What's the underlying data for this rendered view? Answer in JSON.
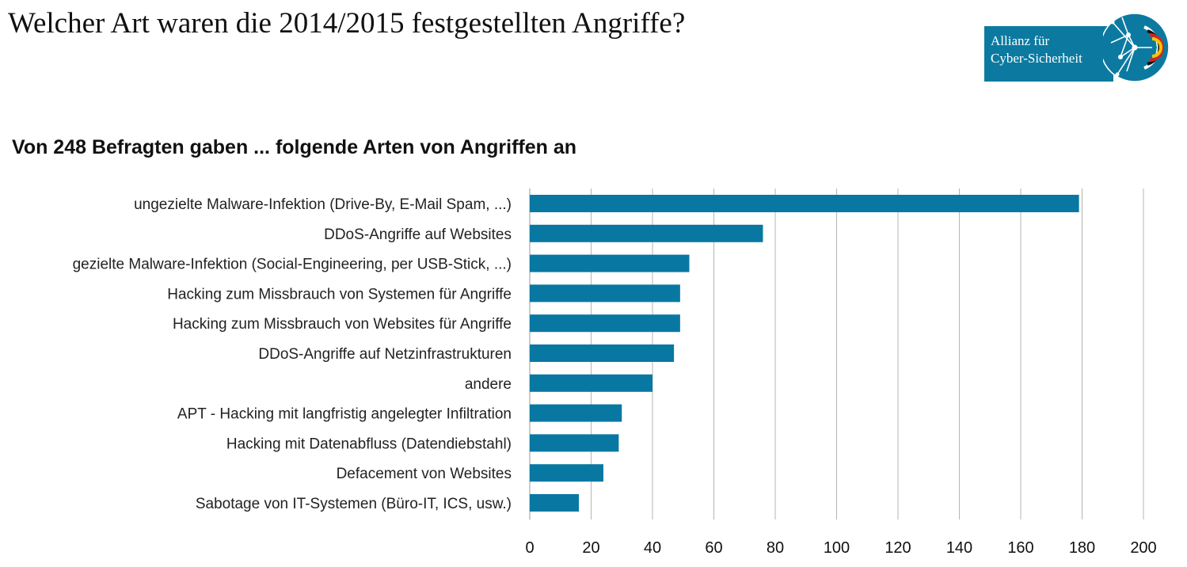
{
  "header": {
    "title": "Welcher Art waren die 2014/2015 festgestellten Angriffe?"
  },
  "logo": {
    "line1": "Allianz für",
    "line2": "Cyber-Sicherheit",
    "brand_color": "#0c7aa0"
  },
  "chart_data": {
    "type": "bar",
    "orientation": "horizontal",
    "title": "Von 248 Befragten gaben ... folgende Arten von Angriffen  an",
    "categories": [
      "ungezielte Malware-Infektion (Drive-By, E-Mail Spam, ...)",
      "DDoS-Angriffe auf Websites",
      "gezielte Malware-Infektion (Social-Engineering, per USB-Stick, ...)",
      "Hacking zum Missbrauch von Systemen für Angriffe",
      "Hacking zum Missbrauch von Websites für Angriffe",
      "DDoS-Angriffe auf Netzinfrastrukturen",
      "andere",
      "APT - Hacking mit langfristig angelegter Infiltration",
      "Hacking mit Datenabfluss (Datendiebstahl)",
      "Defacement von Websites",
      "Sabotage von IT-Systemen (Büro-IT, ICS, usw.)"
    ],
    "values": [
      179,
      76,
      52,
      49,
      49,
      47,
      40,
      30,
      29,
      24,
      16
    ],
    "xlim": [
      0,
      200
    ],
    "ticks": [
      "0",
      "20",
      "40",
      "60",
      "80",
      "100",
      "120",
      "140",
      "160",
      "180",
      "200"
    ],
    "grid": true,
    "bar_color": "#0878a2",
    "xlabel": "",
    "ylabel": ""
  }
}
